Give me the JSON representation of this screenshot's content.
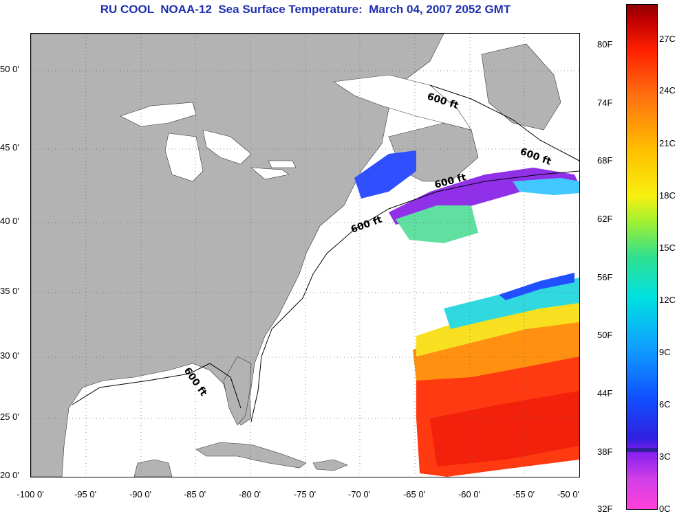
{
  "title": "RU COOL  NOAA-12  Sea Surface Temperature:  March 04, 2007 2052 GMT",
  "latitude_labels": [
    "50 0'",
    "45 0'",
    "40 0'",
    "35 0'",
    "30 0'",
    "25 0'",
    "20 0'"
  ],
  "longitude_labels": [
    "-100 0'",
    "-95 0'",
    "-90 0'",
    "-85 0'",
    "-80 0'",
    "-75 0'",
    "-70 0'",
    "-65 0'",
    "-60 0'",
    "-55 0'",
    "-50 0'"
  ],
  "isobath_label": "600 ft",
  "colorbar": {
    "fahrenheit": [
      "80F",
      "74F",
      "68F",
      "62F",
      "56F",
      "50F",
      "44F",
      "38F",
      "32F"
    ],
    "celsius": [
      "27C",
      "24C",
      "21C",
      "18C",
      "15C",
      "12C",
      "9C",
      "6C",
      "3C",
      "0C"
    ]
  },
  "colors": {
    "land": "#b3b3b3",
    "title": "#1f2fb0",
    "warm": "#ff3000",
    "cold": "#2040ff"
  }
}
